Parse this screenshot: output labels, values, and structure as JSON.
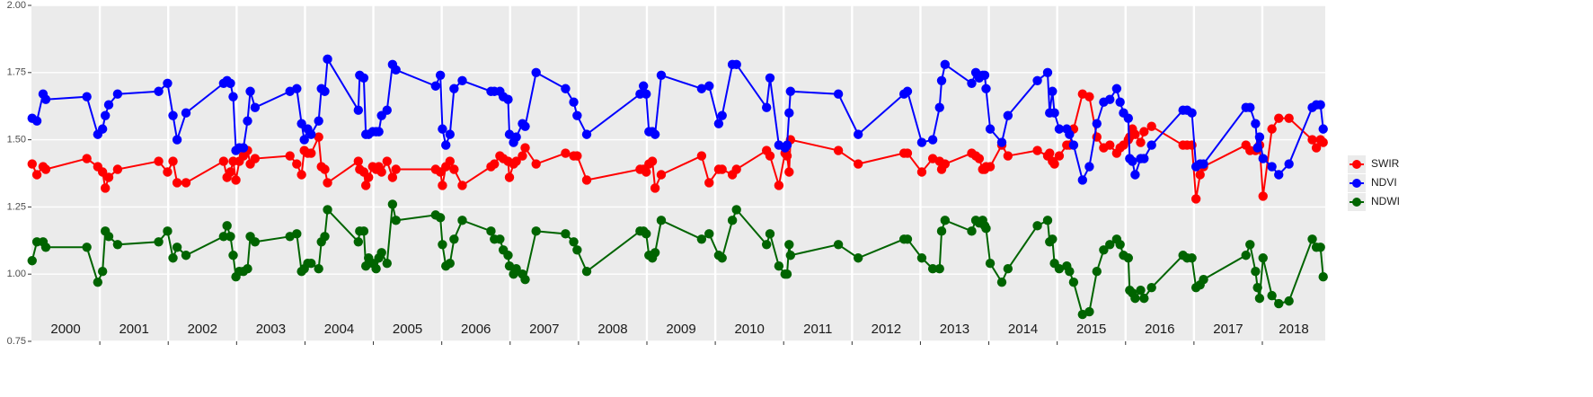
{
  "chart_data": {
    "type": "line",
    "legend": "right",
    "grid": true,
    "xlim": [
      2000,
      2018.92
    ],
    "xticks": [
      2001,
      2002,
      2003,
      2004,
      2005,
      2006,
      2007,
      2008,
      2009,
      2010,
      2011,
      2012,
      2013,
      2014,
      2015,
      2016,
      2017,
      2018
    ],
    "year_labels": [
      "2000",
      "2001",
      "2002",
      "2003",
      "2004",
      "2005",
      "2006",
      "2007",
      "2008",
      "2009",
      "2010",
      "2011",
      "2012",
      "2013",
      "2014",
      "2015",
      "2016",
      "2017",
      "2018"
    ],
    "ylim": [
      0.75,
      2.0
    ],
    "yticks": [
      {
        "value": 0.75,
        "label": "0.75"
      },
      {
        "value": 1.0,
        "label": "1.00"
      },
      1.25,
      {
        "value": 1.5,
        "label": "1.50"
      },
      1.75,
      {
        "value": 2.0,
        "label": "2.00"
      }
    ],
    "x": [
      2000.01,
      2000.08,
      2000.17,
      2000.21,
      2000.81,
      2000.97,
      2001.04,
      2001.08,
      2001.13,
      2001.26,
      2001.86,
      2001.99,
      2002.07,
      2002.13,
      2002.26,
      2002.81,
      2002.86,
      2002.91,
      2002.95,
      2002.99,
      2003.04,
      2003.1,
      2003.16,
      2003.2,
      2003.27,
      2003.78,
      2003.88,
      2003.95,
      2003.99,
      2004.04,
      2004.09,
      2004.2,
      2004.24,
      2004.29,
      2004.33,
      2004.78,
      2004.8,
      2004.86,
      2004.89,
      2004.93,
      2004.99,
      2005.04,
      2005.08,
      2005.12,
      2005.2,
      2005.28,
      2005.33,
      2005.91,
      2005.98,
      2006.01,
      2006.06,
      2006.12,
      2006.18,
      2006.3,
      2006.72,
      2006.77,
      2006.85,
      2006.9,
      2006.97,
      2006.99,
      2007.05,
      2007.09,
      2007.18,
      2007.22,
      2007.38,
      2007.81,
      2007.93,
      2007.98,
      2008.12,
      2008.9,
      2008.95,
      2008.99,
      2009.03,
      2009.08,
      2009.12,
      2009.21,
      2009.8,
      2009.91,
      2010.05,
      2010.1,
      2010.25,
      2010.31,
      2010.75,
      2010.8,
      2010.93,
      2011.02,
      2011.05,
      2011.08,
      2011.1,
      2011.8,
      2012.09,
      2012.76,
      2012.81,
      2013.02,
      2013.18,
      2013.28,
      2013.31,
      2013.36,
      2013.75,
      2013.81,
      2013.86,
      2013.91,
      2013.94,
      2013.96,
      2014.02,
      2014.19,
      2014.28,
      2014.71,
      2014.86,
      2014.89,
      2014.93,
      2014.96,
      2015.03,
      2015.14,
      2015.18,
      2015.24,
      2015.37,
      2015.47,
      2015.58,
      2015.68,
      2015.77,
      2015.87,
      2015.92,
      2015.97,
      2016.04,
      2016.06,
      2016.1,
      2016.14,
      2016.22,
      2016.27,
      2016.38,
      2016.84,
      2016.9,
      2016.97,
      2017.03,
      2017.09,
      2017.14,
      2017.76,
      2017.82,
      2017.9,
      2017.93,
      2017.96,
      2018.01,
      2018.14,
      2018.24,
      2018.39,
      2018.73,
      2018.79,
      2018.85,
      2018.89
    ],
    "series": [
      {
        "name": "SWIR",
        "color": "#ff0000",
        "values": [
          1.41,
          1.37,
          1.4,
          1.39,
          1.43,
          1.4,
          1.38,
          1.32,
          1.36,
          1.39,
          1.42,
          1.38,
          1.42,
          1.34,
          1.34,
          1.42,
          1.36,
          1.38,
          1.42,
          1.35,
          1.42,
          1.44,
          1.46,
          1.41,
          1.43,
          1.44,
          1.41,
          1.37,
          1.46,
          1.45,
          1.45,
          1.51,
          1.4,
          1.39,
          1.34,
          1.42,
          1.39,
          1.38,
          1.33,
          1.36,
          1.4,
          1.39,
          1.4,
          1.38,
          1.42,
          1.36,
          1.39,
          1.39,
          1.38,
          1.33,
          1.4,
          1.42,
          1.39,
          1.33,
          1.4,
          1.41,
          1.44,
          1.43,
          1.42,
          1.36,
          1.41,
          1.42,
          1.44,
          1.47,
          1.41,
          1.45,
          1.44,
          1.44,
          1.35,
          1.39,
          1.39,
          1.38,
          1.41,
          1.42,
          1.32,
          1.37,
          1.44,
          1.34,
          1.39,
          1.39,
          1.37,
          1.39,
          1.46,
          1.44,
          1.33,
          1.45,
          1.44,
          1.38,
          1.5,
          1.46,
          1.41,
          1.45,
          1.45,
          1.38,
          1.43,
          1.42,
          1.39,
          1.41,
          1.45,
          1.44,
          1.43,
          1.39,
          1.39,
          1.4,
          1.4,
          1.48,
          1.44,
          1.46,
          1.44,
          1.45,
          1.42,
          1.41,
          1.44,
          1.48,
          1.48,
          1.54,
          1.67,
          1.66,
          1.51,
          1.47,
          1.48,
          1.45,
          1.47,
          1.48,
          1.5,
          1.51,
          1.54,
          1.52,
          1.49,
          1.53,
          1.55,
          1.48,
          1.48,
          1.48,
          1.28,
          1.37,
          1.4,
          1.48,
          1.46,
          1.46,
          1.47,
          1.48,
          1.29,
          1.54,
          1.58,
          1.58,
          1.5,
          1.47,
          1.5,
          1.49
        ]
      },
      {
        "name": "NDVI",
        "color": "#0000ff",
        "values": [
          1.58,
          1.57,
          1.67,
          1.65,
          1.66,
          1.52,
          1.54,
          1.59,
          1.63,
          1.67,
          1.68,
          1.71,
          1.59,
          1.5,
          1.6,
          1.71,
          1.72,
          1.71,
          1.66,
          1.46,
          1.47,
          1.47,
          1.57,
          1.68,
          1.62,
          1.68,
          1.69,
          1.56,
          1.5,
          1.54,
          1.52,
          1.57,
          1.69,
          1.68,
          1.8,
          1.61,
          1.74,
          1.73,
          1.52,
          1.52,
          1.53,
          1.53,
          1.53,
          1.59,
          1.61,
          1.78,
          1.76,
          1.7,
          1.74,
          1.54,
          1.48,
          1.52,
          1.69,
          1.72,
          1.68,
          1.68,
          1.68,
          1.66,
          1.65,
          1.52,
          1.49,
          1.51,
          1.56,
          1.55,
          1.75,
          1.69,
          1.64,
          1.59,
          1.52,
          1.67,
          1.7,
          1.67,
          1.53,
          1.53,
          1.52,
          1.74,
          1.69,
          1.7,
          1.56,
          1.59,
          1.78,
          1.78,
          1.62,
          1.73,
          1.48,
          1.47,
          1.48,
          1.6,
          1.68,
          1.67,
          1.52,
          1.67,
          1.68,
          1.49,
          1.5,
          1.62,
          1.72,
          1.78,
          1.71,
          1.75,
          1.73,
          1.74,
          1.74,
          1.69,
          1.54,
          1.49,
          1.59,
          1.72,
          1.75,
          1.6,
          1.68,
          1.6,
          1.54,
          1.54,
          1.52,
          1.48,
          1.35,
          1.4,
          1.56,
          1.64,
          1.65,
          1.69,
          1.64,
          1.6,
          1.58,
          1.43,
          1.42,
          1.37,
          1.43,
          1.43,
          1.48,
          1.61,
          1.61,
          1.6,
          1.4,
          1.41,
          1.41,
          1.62,
          1.62,
          1.56,
          1.47,
          1.51,
          1.43,
          1.4,
          1.37,
          1.41,
          1.62,
          1.63,
          1.63,
          1.54
        ]
      },
      {
        "name": "NDWI",
        "color": "#006400",
        "values": [
          1.05,
          1.12,
          1.12,
          1.1,
          1.1,
          0.97,
          1.01,
          1.16,
          1.14,
          1.11,
          1.12,
          1.16,
          1.06,
          1.1,
          1.07,
          1.14,
          1.18,
          1.14,
          1.07,
          0.99,
          1.01,
          1.01,
          1.02,
          1.14,
          1.12,
          1.14,
          1.15,
          1.01,
          1.02,
          1.04,
          1.04,
          1.02,
          1.12,
          1.14,
          1.24,
          1.12,
          1.16,
          1.16,
          1.03,
          1.06,
          1.04,
          1.02,
          1.06,
          1.08,
          1.04,
          1.26,
          1.2,
          1.22,
          1.21,
          1.11,
          1.03,
          1.04,
          1.13,
          1.2,
          1.16,
          1.13,
          1.13,
          1.09,
          1.07,
          1.03,
          1.0,
          1.02,
          1.0,
          0.98,
          1.16,
          1.15,
          1.12,
          1.09,
          1.01,
          1.16,
          1.16,
          1.15,
          1.07,
          1.06,
          1.08,
          1.2,
          1.13,
          1.15,
          1.07,
          1.06,
          1.2,
          1.24,
          1.11,
          1.15,
          1.03,
          1.0,
          1.0,
          1.11,
          1.07,
          1.11,
          1.06,
          1.13,
          1.13,
          1.06,
          1.02,
          1.02,
          1.16,
          1.2,
          1.16,
          1.2,
          1.19,
          1.2,
          1.18,
          1.17,
          1.04,
          0.97,
          1.02,
          1.18,
          1.2,
          1.12,
          1.13,
          1.04,
          1.02,
          1.03,
          1.01,
          0.97,
          0.85,
          0.86,
          1.01,
          1.09,
          1.11,
          1.13,
          1.11,
          1.07,
          1.06,
          0.94,
          0.93,
          0.91,
          0.94,
          0.91,
          0.95,
          1.07,
          1.06,
          1.06,
          0.95,
          0.96,
          0.98,
          1.07,
          1.11,
          1.01,
          0.95,
          0.91,
          1.06,
          0.92,
          0.89,
          0.9,
          1.13,
          1.1,
          1.1,
          0.99
        ]
      }
    ]
  }
}
